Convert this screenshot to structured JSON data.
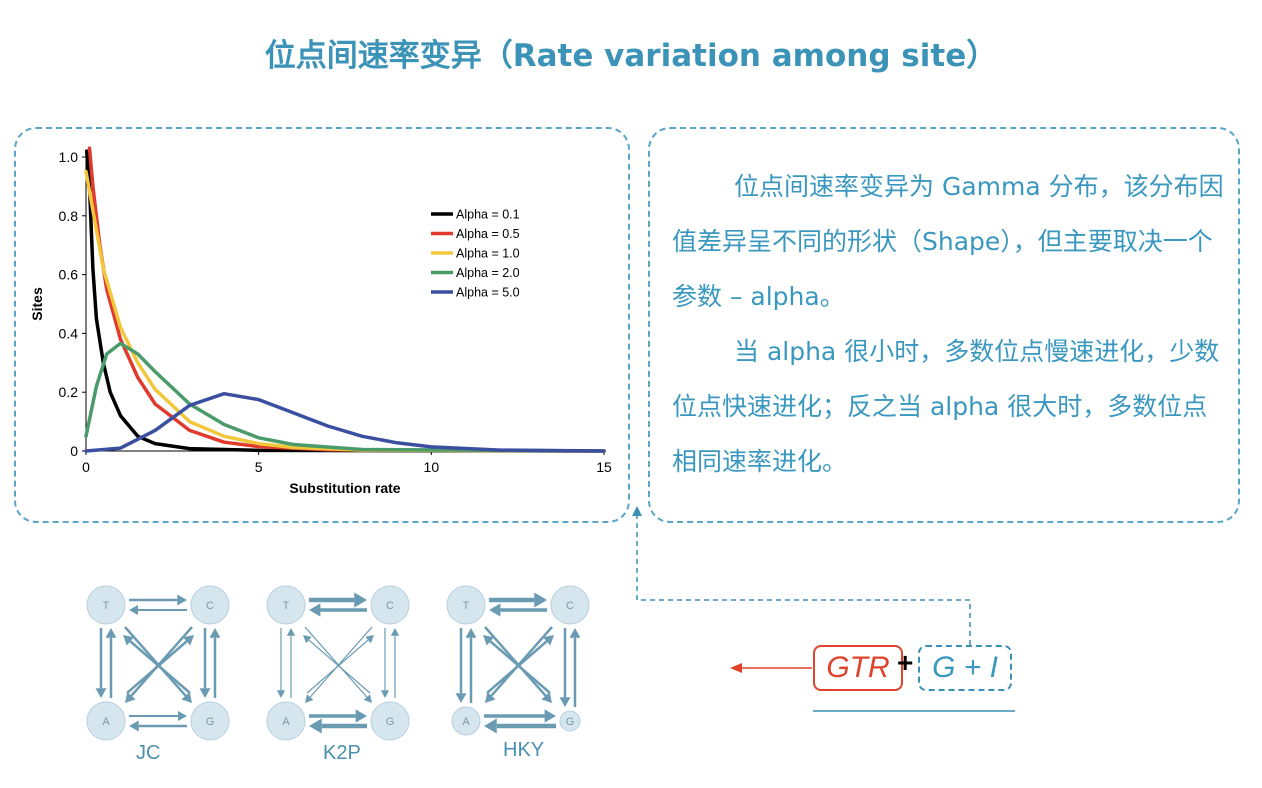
{
  "title": "位点间速率变异（Rate variation among site）",
  "description": {
    "para1": "位点间速率变异为 Gamma 分布，该分布因值差异呈不同的形状（Shape），但主要取决一个参数 – alpha。",
    "para2": "当 alpha 很小时，多数位点慢速进化，少数位点快速进化；反之当 alpha 很大时，多数位点相同速率进化。"
  },
  "models": [
    {
      "name": "JC",
      "nodes": [
        "T",
        "C",
        "A",
        "G"
      ]
    },
    {
      "name": "K2P",
      "nodes": [
        "T",
        "C",
        "A",
        "G"
      ]
    },
    {
      "name": "HKY",
      "nodes": [
        "T",
        "C",
        "A",
        "G"
      ]
    }
  ],
  "formula": {
    "gtr": "GTR",
    "plus": "+",
    "gi": "G + I"
  },
  "colors": {
    "accent": "#3a97bf",
    "gtr": "#e0432b",
    "node_fill": "#d6e6ef",
    "arrow": "#6a9bb3"
  },
  "chart_data": {
    "type": "line",
    "xlabel": "Substitution rate",
    "ylabel": "Sites",
    "xlim": [
      0,
      15
    ],
    "ylim": [
      0,
      1.0
    ],
    "xticks": [
      0,
      5,
      10,
      15
    ],
    "yticks": [
      0,
      0.2,
      0.4,
      0.6,
      0.8,
      1.0
    ],
    "ytick_labels": [
      "0",
      "0.2",
      "0.4",
      "0.6",
      "0.8",
      "1.0"
    ],
    "legend_position": "top-right",
    "series": [
      {
        "name": "Alpha = 0.1",
        "color": "#000000",
        "points": [
          [
            0.02,
            1.02
          ],
          [
            0.1,
            0.9
          ],
          [
            0.2,
            0.62
          ],
          [
            0.3,
            0.45
          ],
          [
            0.5,
            0.3
          ],
          [
            0.7,
            0.2
          ],
          [
            1.0,
            0.12
          ],
          [
            1.5,
            0.05
          ],
          [
            2,
            0.025
          ],
          [
            3,
            0.008
          ],
          [
            5,
            0.002
          ],
          [
            15,
            0
          ]
        ]
      },
      {
        "name": "Alpha = 0.5",
        "color": "#e03a2c",
        "points": [
          [
            0.1,
            1.03
          ],
          [
            0.2,
            0.9
          ],
          [
            0.4,
            0.7
          ],
          [
            0.6,
            0.55
          ],
          [
            1.0,
            0.38
          ],
          [
            1.5,
            0.25
          ],
          [
            2,
            0.16
          ],
          [
            3,
            0.07
          ],
          [
            4,
            0.03
          ],
          [
            5,
            0.015
          ],
          [
            7,
            0.004
          ],
          [
            15,
            0
          ]
        ]
      },
      {
        "name": "Alpha = 1.0",
        "color": "#f2c73b",
        "points": [
          [
            0,
            0.95
          ],
          [
            0.5,
            0.62
          ],
          [
            1,
            0.42
          ],
          [
            1.5,
            0.3
          ],
          [
            2,
            0.21
          ],
          [
            3,
            0.1
          ],
          [
            4,
            0.05
          ],
          [
            5,
            0.025
          ],
          [
            6,
            0.012
          ],
          [
            8,
            0.003
          ],
          [
            15,
            0
          ]
        ]
      },
      {
        "name": "Alpha = 2.0",
        "color": "#4a9a6a",
        "points": [
          [
            0,
            0.05
          ],
          [
            0.3,
            0.22
          ],
          [
            0.6,
            0.33
          ],
          [
            1,
            0.366
          ],
          [
            1.5,
            0.33
          ],
          [
            2,
            0.27
          ],
          [
            3,
            0.16
          ],
          [
            4,
            0.09
          ],
          [
            5,
            0.045
          ],
          [
            6,
            0.022
          ],
          [
            8,
            0.005
          ],
          [
            15,
            0
          ]
        ]
      },
      {
        "name": "Alpha = 5.0",
        "color": "#3b4fa0",
        "points": [
          [
            0,
            0
          ],
          [
            1,
            0.01
          ],
          [
            2,
            0.07
          ],
          [
            3,
            0.155
          ],
          [
            4,
            0.195
          ],
          [
            5,
            0.175
          ],
          [
            6,
            0.13
          ],
          [
            7,
            0.085
          ],
          [
            8,
            0.05
          ],
          [
            9,
            0.028
          ],
          [
            10,
            0.014
          ],
          [
            12,
            0.003
          ],
          [
            15,
            0
          ]
        ]
      }
    ]
  }
}
